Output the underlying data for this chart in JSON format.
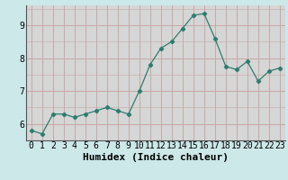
{
  "x": [
    0,
    1,
    2,
    3,
    4,
    5,
    6,
    7,
    8,
    9,
    10,
    11,
    12,
    13,
    14,
    15,
    16,
    17,
    18,
    19,
    20,
    21,
    22,
    23
  ],
  "y": [
    5.8,
    5.7,
    6.3,
    6.3,
    6.2,
    6.3,
    6.4,
    6.5,
    6.4,
    6.3,
    7.0,
    7.8,
    8.3,
    8.5,
    8.9,
    9.3,
    9.35,
    8.6,
    7.75,
    7.65,
    7.9,
    7.3,
    7.6,
    7.7
  ],
  "xlabel": "Humidex (Indice chaleur)",
  "xlim": [
    -0.5,
    23.5
  ],
  "ylim": [
    5.5,
    9.6
  ],
  "yticks": [
    6,
    7,
    8,
    9
  ],
  "xticks": [
    0,
    1,
    2,
    3,
    4,
    5,
    6,
    7,
    8,
    9,
    10,
    11,
    12,
    13,
    14,
    15,
    16,
    17,
    18,
    19,
    20,
    21,
    22,
    23
  ],
  "line_color": "#2e7d6e",
  "marker_color": "#2e7d6e",
  "bg_color": "#cce8e8",
  "plot_bg": "#cce8e8",
  "stripe_color": "#ddc8c8",
  "grid_color": "#c8a8a8",
  "xlabel_fontsize": 8,
  "tick_fontsize": 7
}
